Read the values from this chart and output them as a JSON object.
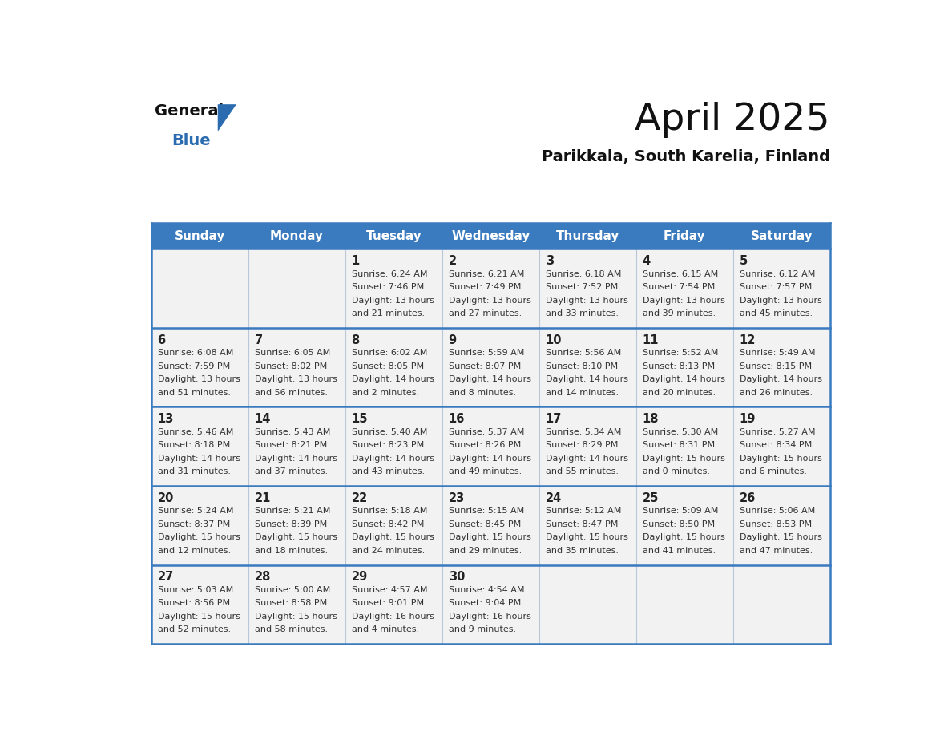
{
  "title": "April 2025",
  "subtitle": "Parikkala, South Karelia, Finland",
  "header_bg": "#3a7abf",
  "header_text": "#ffffff",
  "cell_bg": "#f2f2f2",
  "border_color": "#3a7abf",
  "cell_border_color": "#a0b4c8",
  "text_color": "#333333",
  "day_number_color": "#222222",
  "day_names": [
    "Sunday",
    "Monday",
    "Tuesday",
    "Wednesday",
    "Thursday",
    "Friday",
    "Saturday"
  ],
  "weeks": [
    [
      {
        "day": "",
        "info": ""
      },
      {
        "day": "",
        "info": ""
      },
      {
        "day": "1",
        "info": "Sunrise: 6:24 AM\nSunset: 7:46 PM\nDaylight: 13 hours\nand 21 minutes."
      },
      {
        "day": "2",
        "info": "Sunrise: 6:21 AM\nSunset: 7:49 PM\nDaylight: 13 hours\nand 27 minutes."
      },
      {
        "day": "3",
        "info": "Sunrise: 6:18 AM\nSunset: 7:52 PM\nDaylight: 13 hours\nand 33 minutes."
      },
      {
        "day": "4",
        "info": "Sunrise: 6:15 AM\nSunset: 7:54 PM\nDaylight: 13 hours\nand 39 minutes."
      },
      {
        "day": "5",
        "info": "Sunrise: 6:12 AM\nSunset: 7:57 PM\nDaylight: 13 hours\nand 45 minutes."
      }
    ],
    [
      {
        "day": "6",
        "info": "Sunrise: 6:08 AM\nSunset: 7:59 PM\nDaylight: 13 hours\nand 51 minutes."
      },
      {
        "day": "7",
        "info": "Sunrise: 6:05 AM\nSunset: 8:02 PM\nDaylight: 13 hours\nand 56 minutes."
      },
      {
        "day": "8",
        "info": "Sunrise: 6:02 AM\nSunset: 8:05 PM\nDaylight: 14 hours\nand 2 minutes."
      },
      {
        "day": "9",
        "info": "Sunrise: 5:59 AM\nSunset: 8:07 PM\nDaylight: 14 hours\nand 8 minutes."
      },
      {
        "day": "10",
        "info": "Sunrise: 5:56 AM\nSunset: 8:10 PM\nDaylight: 14 hours\nand 14 minutes."
      },
      {
        "day": "11",
        "info": "Sunrise: 5:52 AM\nSunset: 8:13 PM\nDaylight: 14 hours\nand 20 minutes."
      },
      {
        "day": "12",
        "info": "Sunrise: 5:49 AM\nSunset: 8:15 PM\nDaylight: 14 hours\nand 26 minutes."
      }
    ],
    [
      {
        "day": "13",
        "info": "Sunrise: 5:46 AM\nSunset: 8:18 PM\nDaylight: 14 hours\nand 31 minutes."
      },
      {
        "day": "14",
        "info": "Sunrise: 5:43 AM\nSunset: 8:21 PM\nDaylight: 14 hours\nand 37 minutes."
      },
      {
        "day": "15",
        "info": "Sunrise: 5:40 AM\nSunset: 8:23 PM\nDaylight: 14 hours\nand 43 minutes."
      },
      {
        "day": "16",
        "info": "Sunrise: 5:37 AM\nSunset: 8:26 PM\nDaylight: 14 hours\nand 49 minutes."
      },
      {
        "day": "17",
        "info": "Sunrise: 5:34 AM\nSunset: 8:29 PM\nDaylight: 14 hours\nand 55 minutes."
      },
      {
        "day": "18",
        "info": "Sunrise: 5:30 AM\nSunset: 8:31 PM\nDaylight: 15 hours\nand 0 minutes."
      },
      {
        "day": "19",
        "info": "Sunrise: 5:27 AM\nSunset: 8:34 PM\nDaylight: 15 hours\nand 6 minutes."
      }
    ],
    [
      {
        "day": "20",
        "info": "Sunrise: 5:24 AM\nSunset: 8:37 PM\nDaylight: 15 hours\nand 12 minutes."
      },
      {
        "day": "21",
        "info": "Sunrise: 5:21 AM\nSunset: 8:39 PM\nDaylight: 15 hours\nand 18 minutes."
      },
      {
        "day": "22",
        "info": "Sunrise: 5:18 AM\nSunset: 8:42 PM\nDaylight: 15 hours\nand 24 minutes."
      },
      {
        "day": "23",
        "info": "Sunrise: 5:15 AM\nSunset: 8:45 PM\nDaylight: 15 hours\nand 29 minutes."
      },
      {
        "day": "24",
        "info": "Sunrise: 5:12 AM\nSunset: 8:47 PM\nDaylight: 15 hours\nand 35 minutes."
      },
      {
        "day": "25",
        "info": "Sunrise: 5:09 AM\nSunset: 8:50 PM\nDaylight: 15 hours\nand 41 minutes."
      },
      {
        "day": "26",
        "info": "Sunrise: 5:06 AM\nSunset: 8:53 PM\nDaylight: 15 hours\nand 47 minutes."
      }
    ],
    [
      {
        "day": "27",
        "info": "Sunrise: 5:03 AM\nSunset: 8:56 PM\nDaylight: 15 hours\nand 52 minutes."
      },
      {
        "day": "28",
        "info": "Sunrise: 5:00 AM\nSunset: 8:58 PM\nDaylight: 15 hours\nand 58 minutes."
      },
      {
        "day": "29",
        "info": "Sunrise: 4:57 AM\nSunset: 9:01 PM\nDaylight: 16 hours\nand 4 minutes."
      },
      {
        "day": "30",
        "info": "Sunrise: 4:54 AM\nSunset: 9:04 PM\nDaylight: 16 hours\nand 9 minutes."
      },
      {
        "day": "",
        "info": ""
      },
      {
        "day": "",
        "info": ""
      },
      {
        "day": "",
        "info": ""
      }
    ]
  ]
}
